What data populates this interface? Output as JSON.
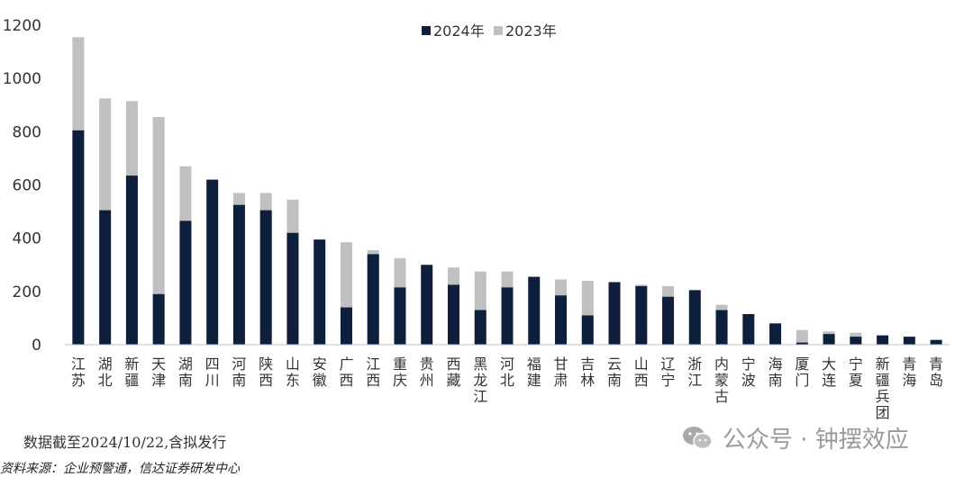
{
  "chart_data": {
    "type": "bar",
    "stacked": "overlay",
    "ylim": [
      0,
      1200
    ],
    "yticks": [
      0,
      200,
      400,
      600,
      800,
      1000,
      1200
    ],
    "legend": {
      "placement": "top-center"
    },
    "categories": [
      "江苏",
      "湖北",
      "新疆",
      "天津",
      "湖南",
      "四川",
      "河南",
      "陕西",
      "山东",
      "安徽",
      "广西",
      "江西",
      "重庆",
      "贵州",
      "西藏",
      "黑龙江",
      "河北",
      "福建",
      "甘肃",
      "吉林",
      "云南",
      "山西",
      "辽宁",
      "浙江",
      "内蒙古",
      "宁波",
      "海南",
      "厦门",
      "大连",
      "宁夏",
      "新疆兵团",
      "青海",
      "青岛"
    ],
    "series": [
      {
        "name": "2024年",
        "color": "#0d1f3c",
        "values": [
          805,
          505,
          635,
          190,
          465,
          620,
          525,
          505,
          420,
          395,
          140,
          340,
          215,
          300,
          225,
          130,
          215,
          255,
          185,
          110,
          235,
          220,
          180,
          205,
          130,
          115,
          80,
          8,
          40,
          30,
          35,
          30,
          18
        ]
      },
      {
        "name": "2023年",
        "color": "#c0c0c0",
        "values": [
          1155,
          925,
          915,
          855,
          670,
          0,
          570,
          570,
          545,
          0,
          385,
          355,
          325,
          0,
          290,
          275,
          275,
          0,
          245,
          240,
          0,
          225,
          220,
          0,
          150,
          0,
          0,
          55,
          50,
          45,
          0,
          0,
          0
        ]
      }
    ]
  },
  "note": "数据截至2024/10/22,含拟发行",
  "source": "资料来源：企业预警通，信达证券研发中心",
  "watermark": "公众号 · 钟摆效应"
}
